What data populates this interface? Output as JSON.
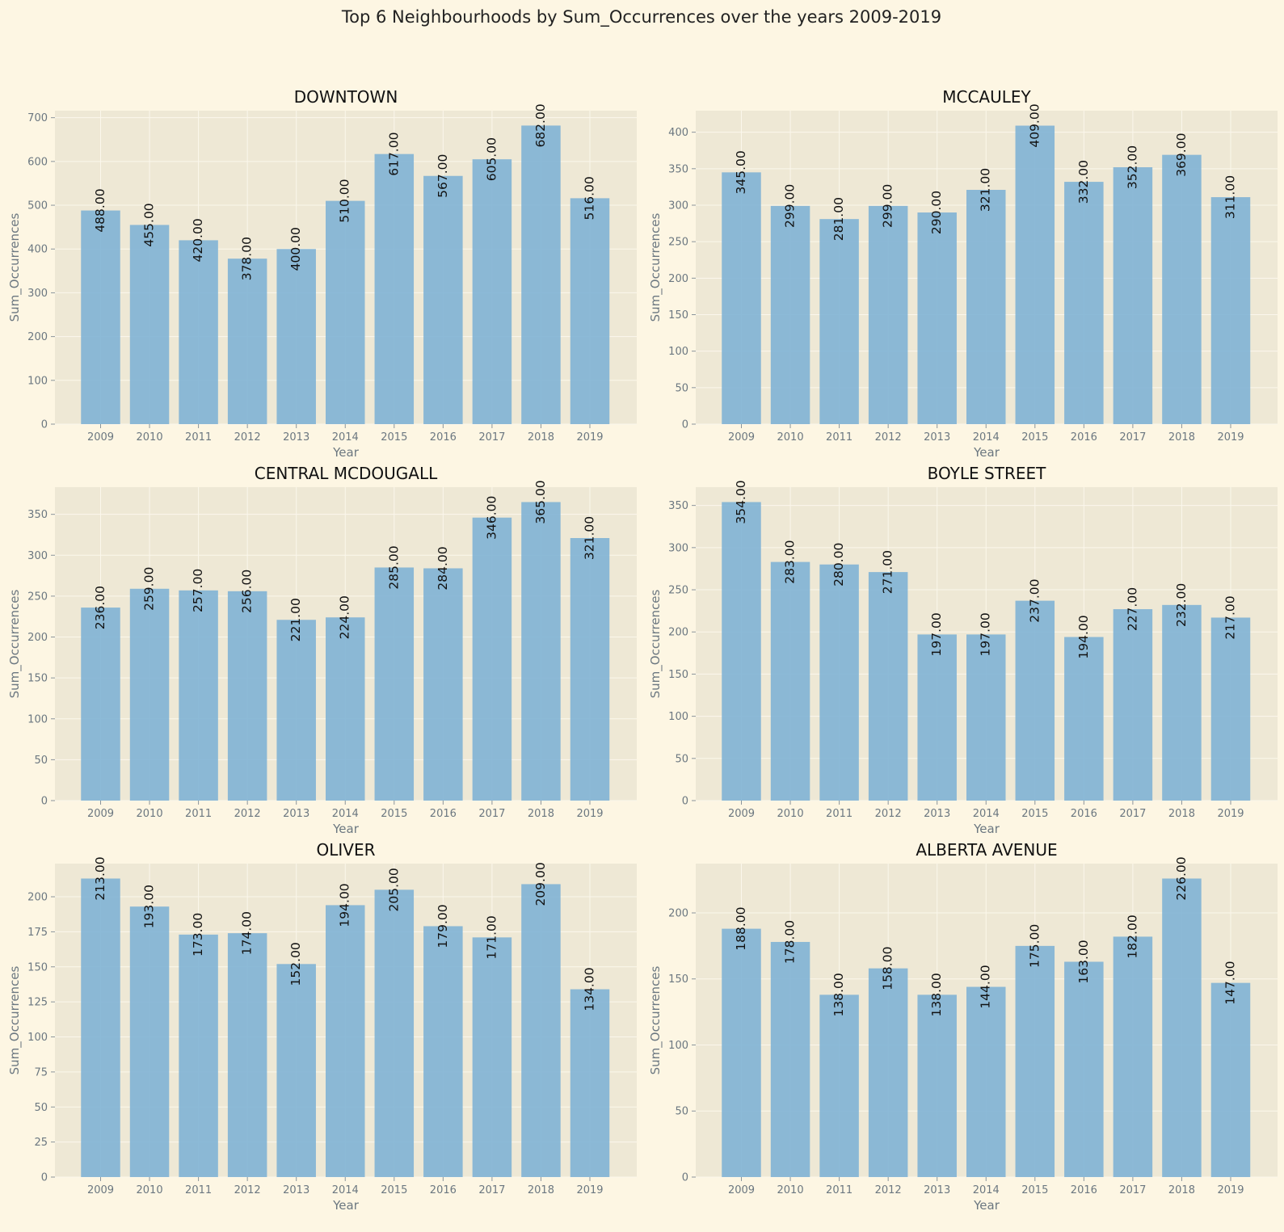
{
  "figure": {
    "title": "Top 6 Neighbourhoods by Sum_Occurrences over the years 2009-2019",
    "background_color": "#fdf6e3",
    "plot_background_color": "#eee8d5",
    "bar_color": "#7fb3d5"
  },
  "chart_data": [
    {
      "type": "bar",
      "title": "DOWNTOWN",
      "xlabel": "Year",
      "ylabel": "Sum_Occurrences",
      "categories": [
        "2009",
        "2010",
        "2011",
        "2012",
        "2013",
        "2014",
        "2015",
        "2016",
        "2017",
        "2018",
        "2019"
      ],
      "values": [
        488,
        455,
        420,
        378,
        400,
        510,
        617,
        567,
        605,
        682,
        516
      ],
      "data_labels": [
        "488.00",
        "455.00",
        "420.00",
        "378.00",
        "400.00",
        "510.00",
        "617.00",
        "567.00",
        "605.00",
        "682.00",
        "516.00"
      ],
      "yticks": [
        0,
        100,
        200,
        300,
        400,
        500,
        600,
        700
      ],
      "ylim": [
        0,
        716
      ],
      "grid": true
    },
    {
      "type": "bar",
      "title": "MCCAULEY",
      "xlabel": "Year",
      "ylabel": "Sum_Occurrences",
      "categories": [
        "2009",
        "2010",
        "2011",
        "2012",
        "2013",
        "2014",
        "2015",
        "2016",
        "2017",
        "2018",
        "2019"
      ],
      "values": [
        345,
        299,
        281,
        299,
        290,
        321,
        409,
        332,
        352,
        369,
        311
      ],
      "data_labels": [
        "345.00",
        "299.00",
        "281.00",
        "299.00",
        "290.00",
        "321.00",
        "409.00",
        "332.00",
        "352.00",
        "369.00",
        "311.00"
      ],
      "yticks": [
        0,
        50,
        100,
        150,
        200,
        250,
        300,
        350,
        400
      ],
      "ylim": [
        0,
        429.5
      ],
      "grid": true
    },
    {
      "type": "bar",
      "title": "CENTRAL MCDOUGALL",
      "xlabel": "Year",
      "ylabel": "Sum_Occurrences",
      "categories": [
        "2009",
        "2010",
        "2011",
        "2012",
        "2013",
        "2014",
        "2015",
        "2016",
        "2017",
        "2018",
        "2019"
      ],
      "values": [
        236,
        259,
        257,
        256,
        221,
        224,
        285,
        284,
        346,
        365,
        321
      ],
      "data_labels": [
        "236.00",
        "259.00",
        "257.00",
        "256.00",
        "221.00",
        "224.00",
        "285.00",
        "284.00",
        "346.00",
        "365.00",
        "321.00"
      ],
      "yticks": [
        0,
        50,
        100,
        150,
        200,
        250,
        300,
        350
      ],
      "ylim": [
        0,
        383.25
      ],
      "grid": true
    },
    {
      "type": "bar",
      "title": "BOYLE STREET",
      "xlabel": "Year",
      "ylabel": "Sum_Occurrences",
      "categories": [
        "2009",
        "2010",
        "2011",
        "2012",
        "2013",
        "2014",
        "2015",
        "2016",
        "2017",
        "2018",
        "2019"
      ],
      "values": [
        354,
        283,
        280,
        271,
        197,
        197,
        237,
        194,
        227,
        232,
        217
      ],
      "data_labels": [
        "354.00",
        "283.00",
        "280.00",
        "271.00",
        "197.00",
        "197.00",
        "237.00",
        "194.00",
        "227.00",
        "232.00",
        "217.00"
      ],
      "yticks": [
        0,
        50,
        100,
        150,
        200,
        250,
        300,
        350
      ],
      "ylim": [
        0,
        371.7
      ],
      "grid": true
    },
    {
      "type": "bar",
      "title": "OLIVER",
      "xlabel": "Year",
      "ylabel": "Sum_Occurrences",
      "categories": [
        "2009",
        "2010",
        "2011",
        "2012",
        "2013",
        "2014",
        "2015",
        "2016",
        "2017",
        "2018",
        "2019"
      ],
      "values": [
        213,
        193,
        173,
        174,
        152,
        194,
        205,
        179,
        171,
        209,
        134
      ],
      "data_labels": [
        "213.00",
        "193.00",
        "173.00",
        "174.00",
        "152.00",
        "194.00",
        "205.00",
        "179.00",
        "171.00",
        "209.00",
        "134.00"
      ],
      "yticks": [
        0,
        25,
        50,
        75,
        100,
        125,
        150,
        175,
        200
      ],
      "ylim": [
        0,
        223.65
      ],
      "grid": true
    },
    {
      "type": "bar",
      "title": "ALBERTA AVENUE",
      "xlabel": "Year",
      "ylabel": "Sum_Occurrences",
      "categories": [
        "2009",
        "2010",
        "2011",
        "2012",
        "2013",
        "2014",
        "2015",
        "2016",
        "2017",
        "2018",
        "2019"
      ],
      "values": [
        188,
        178,
        138,
        158,
        138,
        144,
        175,
        163,
        182,
        226,
        147
      ],
      "data_labels": [
        "188.00",
        "178.00",
        "138.00",
        "158.00",
        "138.00",
        "144.00",
        "175.00",
        "163.00",
        "182.00",
        "226.00",
        "147.00"
      ],
      "yticks": [
        0,
        50,
        100,
        150,
        200
      ],
      "ylim": [
        0,
        237.3
      ],
      "grid": true
    }
  ]
}
